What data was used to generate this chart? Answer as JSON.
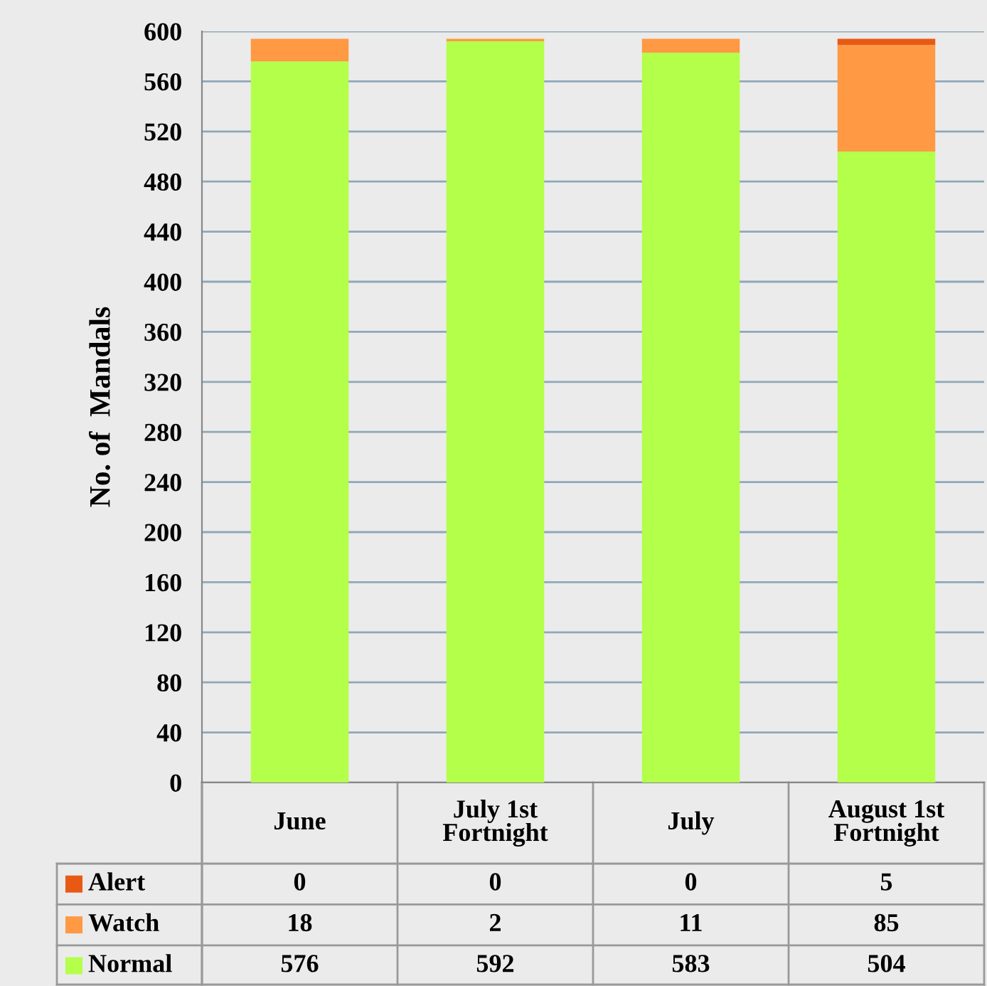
{
  "chart_data": {
    "type": "bar",
    "stacked": true,
    "ylabel": "No. of  Mandals",
    "categories": [
      "June",
      "July 1st\nFortnight",
      "July",
      "August 1st\nFortnight"
    ],
    "series": [
      {
        "name": "Normal",
        "color": "#b3ff4a",
        "values": [
          576,
          592,
          583,
          504
        ]
      },
      {
        "name": "Watch",
        "color": "#ff9944",
        "values": [
          18,
          2,
          11,
          85
        ]
      },
      {
        "name": "Alert",
        "color": "#e85a14",
        "values": [
          0,
          0,
          0,
          5
        ]
      }
    ],
    "ylim": [
      0,
      600
    ],
    "yticks": [
      0,
      40,
      80,
      120,
      160,
      200,
      240,
      280,
      320,
      360,
      400,
      440,
      480,
      520,
      560,
      600
    ],
    "grid": "y",
    "data_labels": true,
    "legend": "bottom"
  }
}
